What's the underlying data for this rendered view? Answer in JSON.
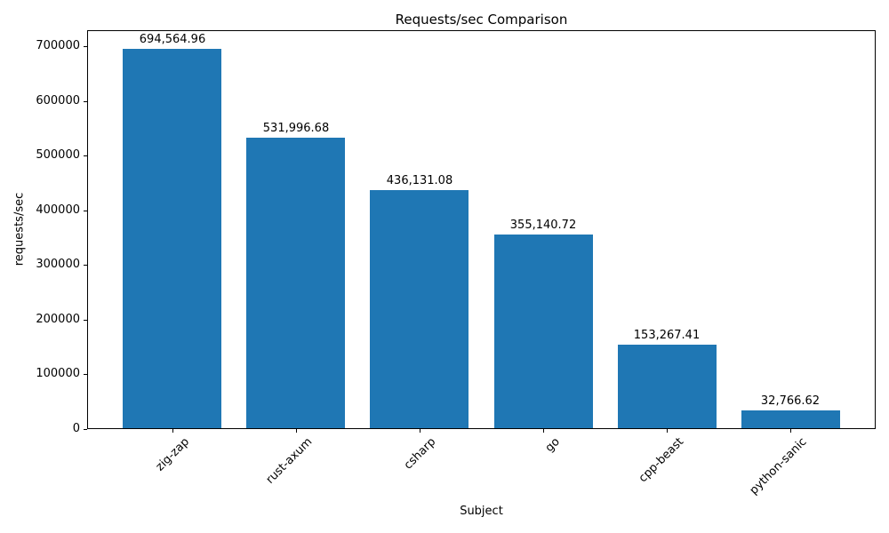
{
  "chart_data": {
    "type": "bar",
    "title": "Requests/sec Comparison",
    "xlabel": "Subject",
    "ylabel": "requests/sec",
    "categories": [
      "zig-zap",
      "rust-axum",
      "csharp",
      "go",
      "cpp-beast",
      "python-sanic"
    ],
    "values": [
      694564.96,
      531996.68,
      436131.08,
      355140.72,
      153267.41,
      32766.62
    ],
    "value_labels": [
      "694,564.96",
      "531,996.68",
      "436,131.08",
      "355,140.72",
      "153,267.41",
      "32,766.62"
    ],
    "yticks": [
      0,
      100000,
      200000,
      300000,
      400000,
      500000,
      600000,
      700000
    ],
    "ytick_labels": [
      "0",
      "100000",
      "200000",
      "300000",
      "400000",
      "500000",
      "600000",
      "700000"
    ],
    "ylim": [
      0,
      730000
    ],
    "bar_color": "#1f77b4",
    "grid": false,
    "legend": null
  }
}
